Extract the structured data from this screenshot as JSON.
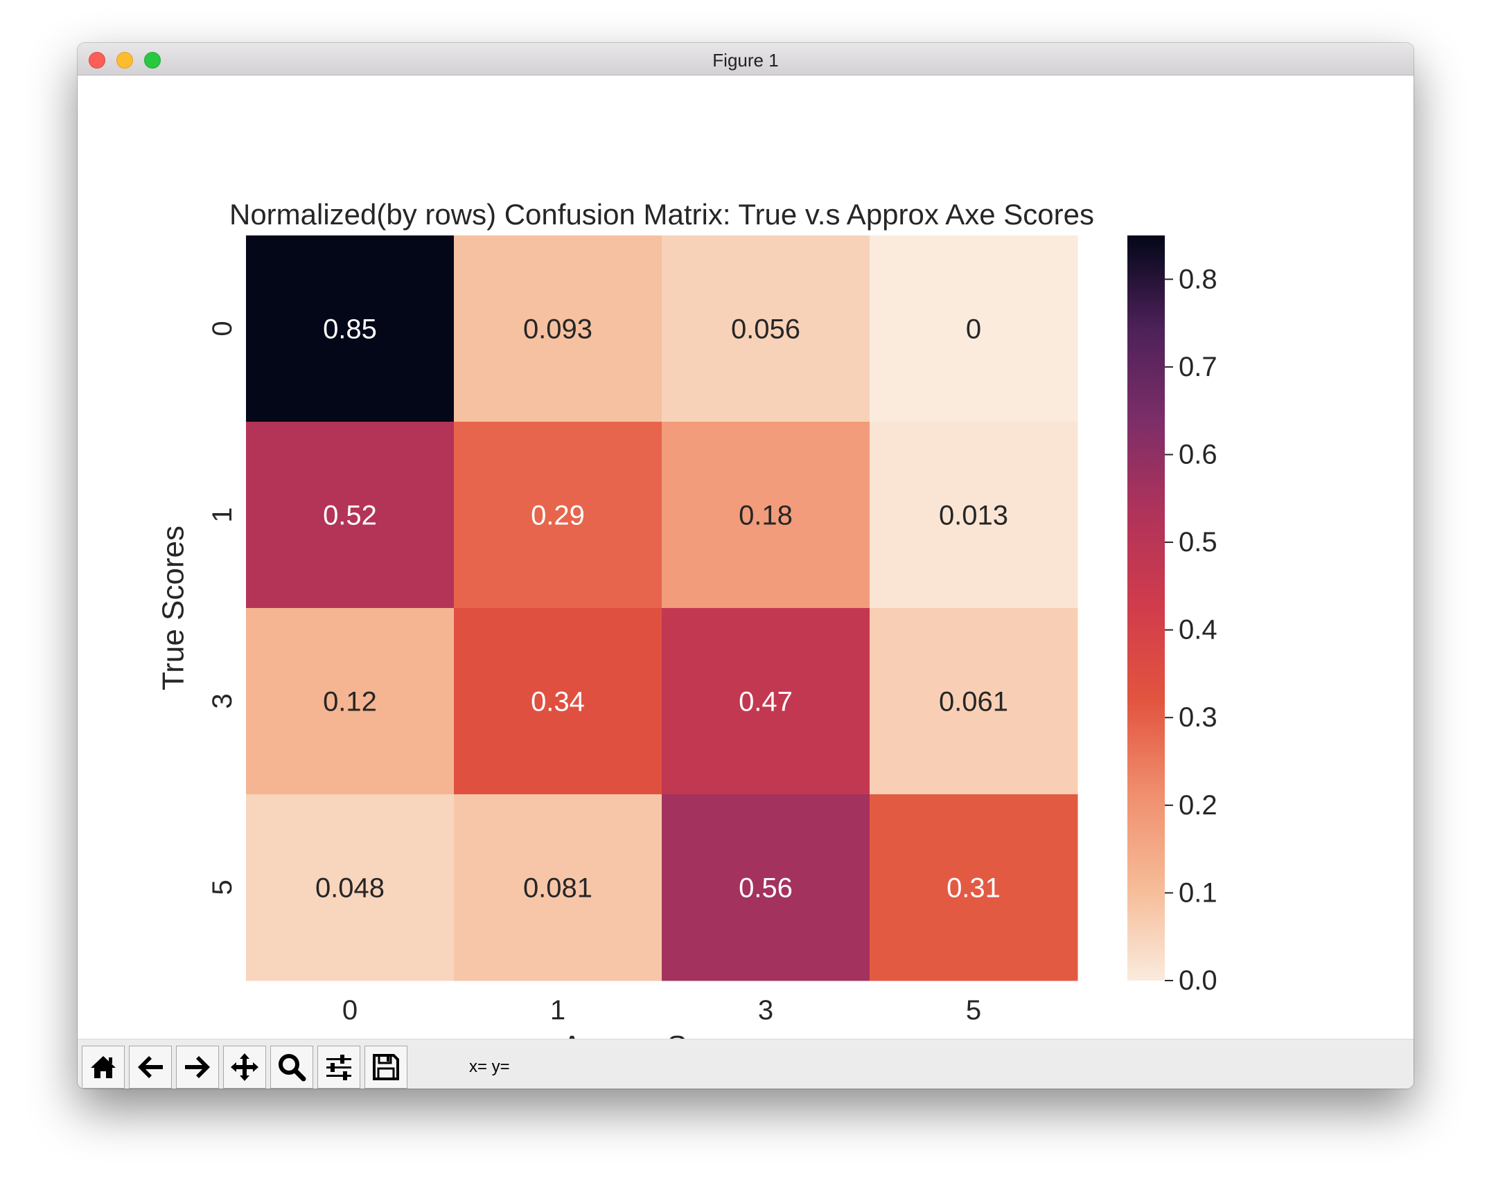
{
  "window": {
    "title": "Figure 1"
  },
  "toolbar": {
    "buttons": [
      {
        "name": "home-button",
        "icon": "home-icon"
      },
      {
        "name": "back-button",
        "icon": "arrow-left-icon"
      },
      {
        "name": "forward-button",
        "icon": "arrow-right-icon"
      },
      {
        "name": "pan-button",
        "icon": "move-icon"
      },
      {
        "name": "zoom-button",
        "icon": "magnifier-icon"
      },
      {
        "name": "configure-subplots-button",
        "icon": "sliders-icon"
      },
      {
        "name": "save-button",
        "icon": "floppy-disk-icon"
      }
    ],
    "coords_label": "x= y="
  },
  "chart_data": {
    "type": "heatmap",
    "title": "Normalized(by rows) Confusion Matrix: True v.s Approx Axe Scores",
    "xlabel": "Approx Scores",
    "ylabel": "True Scores",
    "x_categories": [
      "0",
      "1",
      "3",
      "5"
    ],
    "y_categories": [
      "0",
      "1",
      "3",
      "5"
    ],
    "values": [
      [
        0.85,
        0.093,
        0.056,
        0
      ],
      [
        0.52,
        0.29,
        0.18,
        0.013
      ],
      [
        0.12,
        0.34,
        0.47,
        0.061
      ],
      [
        0.048,
        0.081,
        0.56,
        0.31
      ]
    ],
    "value_labels": [
      [
        "0.85",
        "0.093",
        "0.056",
        "0"
      ],
      [
        "0.52",
        "0.29",
        "0.18",
        "0.013"
      ],
      [
        "0.12",
        "0.34",
        "0.47",
        "0.061"
      ],
      [
        "0.048",
        "0.081",
        "0.56",
        "0.31"
      ]
    ],
    "colorbar": {
      "min": 0,
      "max": 0.85,
      "ticks": [
        0.0,
        0.1,
        0.2,
        0.3,
        0.4,
        0.5,
        0.6,
        0.7,
        0.8
      ],
      "tick_labels": [
        "0.0",
        "0.1",
        "0.2",
        "0.3",
        "0.4",
        "0.5",
        "0.6",
        "0.7",
        "0.8"
      ],
      "colormap": "rocket_r",
      "colors": [
        "#faebdd",
        "#f6bb97",
        "#f08f6e",
        "#e2553f",
        "#d13c4b",
        "#b1335a",
        "#7d2e68",
        "#4d2159",
        "#030718"
      ]
    }
  }
}
